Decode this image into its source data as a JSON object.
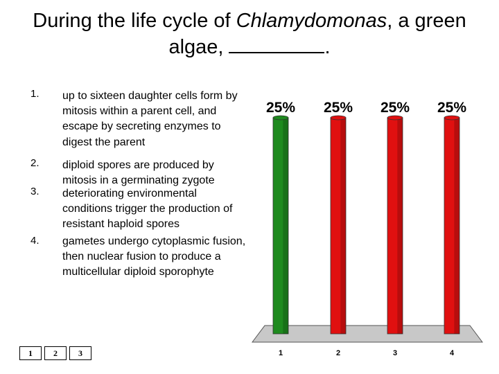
{
  "question": {
    "prefix": "During the life cycle of ",
    "italic": "Chlamydomonas",
    "suffix": ", a green algae,",
    "end": "."
  },
  "answers": [
    {
      "number": "1.",
      "text": "up to sixteen daughter cells form by mitosis within a parent cell, and escape by secreting enzymes to digest the parent"
    },
    {
      "number": "2.",
      "text": "diploid spores are produced by mitosis in a germinating zygote"
    },
    {
      "number": "3.",
      "text": "deteriorating environmental conditions trigger the production of resistant haploid spores"
    },
    {
      "number": "4.",
      "text": "gametes undergo cytoplasmic fusion, then nuclear fusion to produce a multicellular diploid sporophyte"
    }
  ],
  "keypad": [
    "1",
    "2",
    "3"
  ],
  "chart_data": {
    "type": "bar",
    "categories": [
      "1",
      "2",
      "3",
      "4"
    ],
    "values": [
      25,
      25,
      25,
      25
    ],
    "data_labels": [
      "25%",
      "25%",
      "25%",
      "25%"
    ],
    "colors": [
      "#1e8a1e",
      "#e01010",
      "#e01010",
      "#e01010"
    ],
    "ylim": [
      0,
      25
    ],
    "grid": false,
    "legend": "none"
  }
}
